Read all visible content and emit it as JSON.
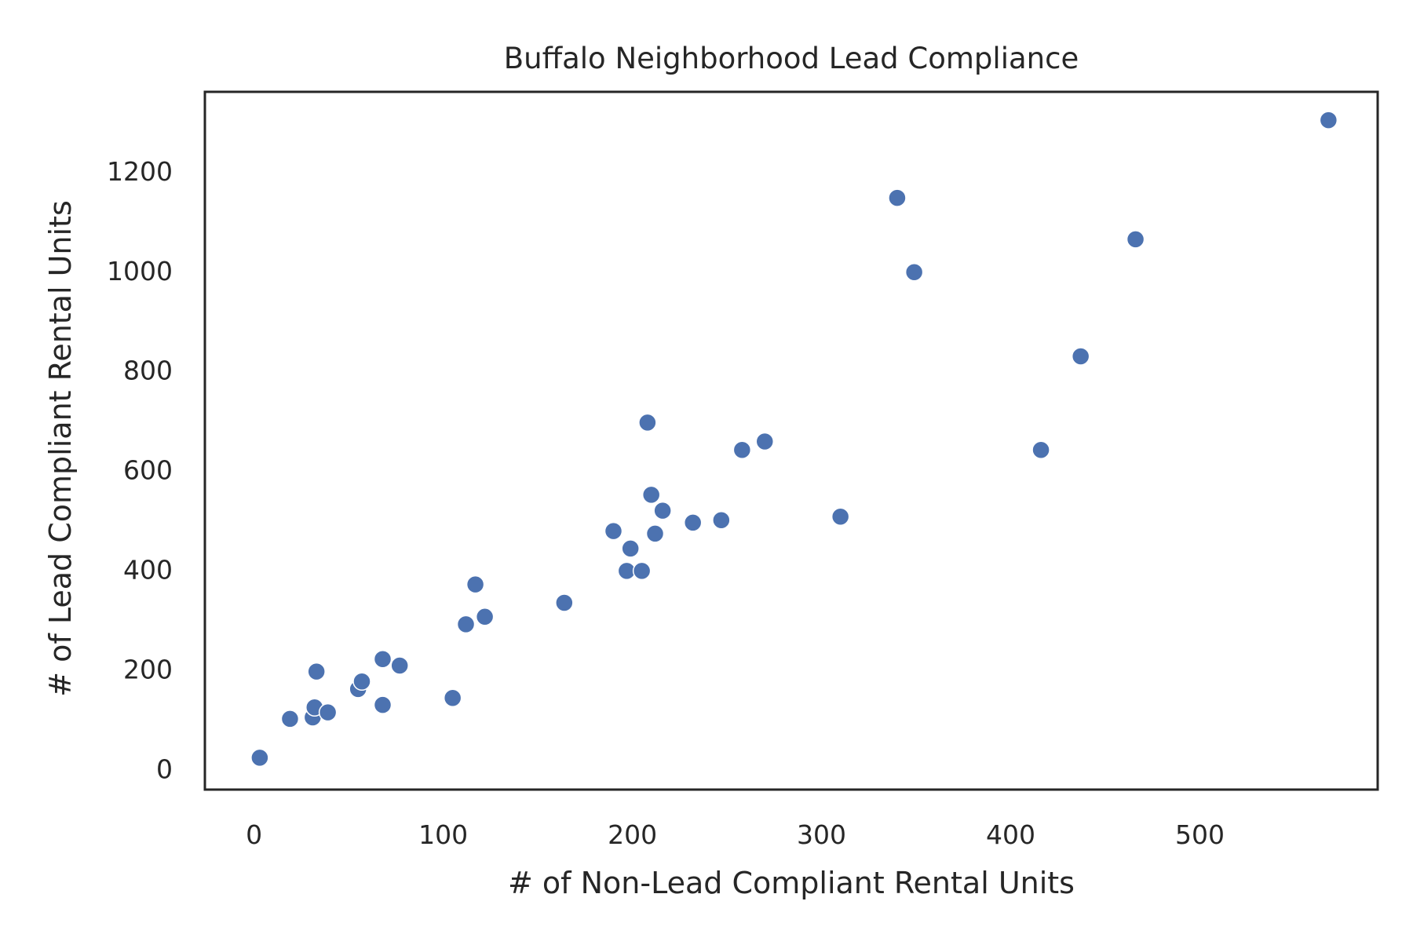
{
  "chart_data": {
    "type": "scatter",
    "title": "Buffalo Neighborhood Lead Compliance",
    "xlabel": "# of Non-Lead Compliant Rental Units",
    "ylabel": "# of Lead Compliant Rental Units",
    "xlim": [
      -26,
      594
    ],
    "ylim": [
      -42,
      1359
    ],
    "xticks": [
      0,
      100,
      200,
      300,
      400,
      500
    ],
    "yticks": [
      0,
      200,
      400,
      600,
      800,
      1000,
      1200
    ],
    "grid": false,
    "legend": "none",
    "marker_color": "#4c72b0",
    "series": [
      {
        "x": [
          3,
          19,
          31,
          33,
          32,
          39,
          55,
          57,
          68,
          68,
          77,
          105,
          112,
          117,
          122,
          164,
          190,
          197,
          199,
          205,
          208,
          210,
          212,
          216,
          232,
          247,
          258,
          270,
          310,
          340,
          349,
          416,
          437,
          466,
          568
        ],
        "y": [
          22,
          100,
          103,
          195,
          123,
          113,
          160,
          175,
          220,
          128,
          207,
          142,
          290,
          370,
          305,
          333,
          477,
          397,
          442,
          397,
          695,
          550,
          472,
          518,
          494,
          499,
          640,
          657,
          506,
          1146,
          997,
          640,
          828,
          1063,
          1302
        ]
      }
    ]
  }
}
